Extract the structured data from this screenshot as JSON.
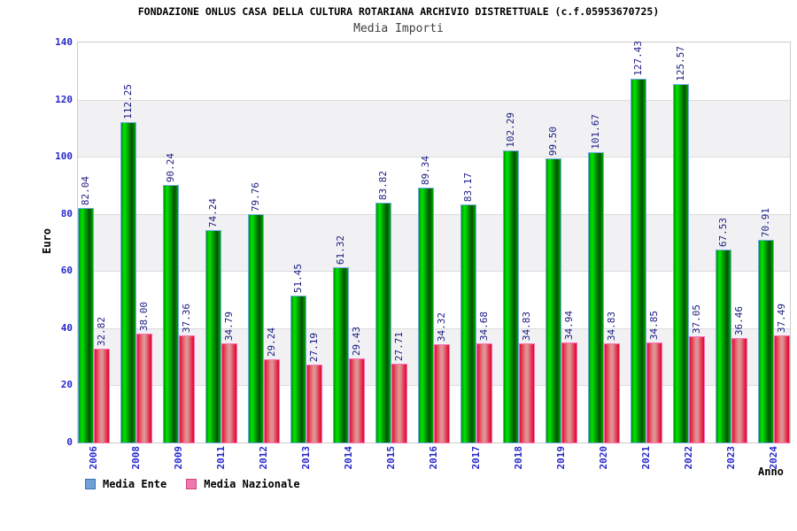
{
  "header": {
    "title": "FONDAZIONE ONLUS CASA DELLA CULTURA ROTARIANA ARCHIVIO DISTRETTUALE (c.f.05953670725)",
    "subtitle": "Media Importi"
  },
  "chart_data": {
    "type": "bar",
    "title": "FONDAZIONE ONLUS CASA DELLA CULTURA ROTARIANA ARCHIVIO DISTRETTUALE (c.f.05953670725)",
    "subtitle": "Media Importi",
    "categories": [
      "2006",
      "2008",
      "2009",
      "2011",
      "2012",
      "2013",
      "2014",
      "2015",
      "2016",
      "2017",
      "2018",
      "2019",
      "2020",
      "2021",
      "2022",
      "2023",
      "2024"
    ],
    "series": [
      {
        "name": "Media Ente",
        "values": [
          82.04,
          112.25,
          90.24,
          74.24,
          79.76,
          51.45,
          61.32,
          83.82,
          89.34,
          83.17,
          102.29,
          99.5,
          101.67,
          127.43,
          125.57,
          67.53,
          70.91
        ],
        "legend_fill": "#6fa0d8",
        "legend_border": "#3a70b0",
        "bar_border": "#74aae8",
        "bar_color": "#00b400"
      },
      {
        "name": "Media Nazionale",
        "values": [
          32.82,
          38.0,
          37.36,
          34.79,
          29.24,
          27.19,
          29.43,
          27.71,
          34.32,
          34.68,
          34.83,
          34.94,
          34.83,
          34.85,
          37.05,
          36.46,
          37.49
        ],
        "legend_fill": "#f078ac",
        "legend_border": "#c84884",
        "bar_border": "#ff6eb4",
        "bar_color": "#dd1236"
      }
    ],
    "ylabel": "Euro",
    "xlabel": "Anno",
    "ylim": [
      0,
      140
    ],
    "ytick_step": 20,
    "yticks": [
      0,
      20,
      40,
      60,
      80,
      100,
      120,
      140
    ],
    "value_label_decimals": 2,
    "legend_position": "bottom-left",
    "grid": "horizontal gridlines with alternating shaded bands"
  },
  "colors": {
    "background": "#ffffff",
    "axis_text": "#2828cc",
    "value_text": "#1a1a82",
    "title_text": "#000000",
    "subtitle_text": "#404040",
    "plot_border": "#cccccc",
    "gridline": "#dcdcdc",
    "band_fill": "#f1f1f3"
  }
}
